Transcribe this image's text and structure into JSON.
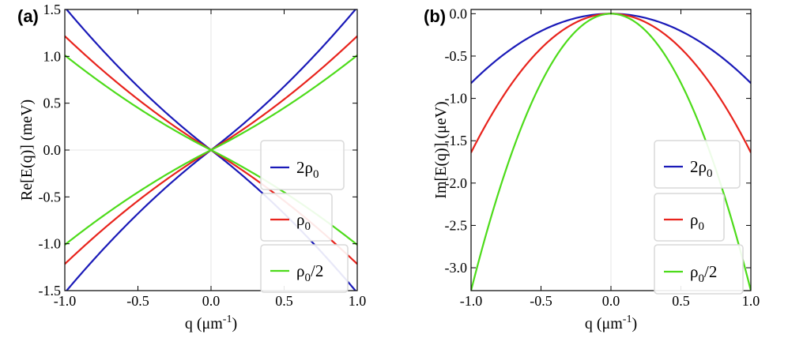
{
  "colors": {
    "blue": "#1a1ab8",
    "red": "#e8231c",
    "green": "#4ddb1a"
  },
  "chart_data": [
    {
      "type": "line",
      "panel_label": "(a)",
      "xlabel": "q (μm",
      "xlabel_sup": "-1",
      "xlabel_end": ")",
      "ylabel": "Re[E(q)] (meV)",
      "xlim": [
        -1.0,
        1.0
      ],
      "ylim": [
        -1.5,
        1.5
      ],
      "xticks": [
        -1.0,
        -0.5,
        0.0,
        0.5,
        1.0
      ],
      "xtick_labels": [
        "-1.0",
        "-0.5",
        "0.0",
        "0.5",
        "1.0"
      ],
      "yticks": [
        1.5,
        1.0,
        0.5,
        0.0,
        -0.5,
        -1.0,
        -1.5
      ],
      "ytick_labels": [
        "1.5",
        "1.0",
        "0.5",
        "0.0",
        "-0.5",
        "-1.0",
        "-1.5"
      ],
      "model": "Re E = ± c |q| (1 + b|q|)",
      "series": [
        {
          "name": "2ρ0",
          "label_main": "2ρ",
          "label_sub": "0",
          "label_tail": "",
          "color": "blue",
          "coef_c": 1.19,
          "coef_b": 0.28
        },
        {
          "name": "ρ0",
          "label_main": "ρ",
          "label_sub": "0",
          "label_tail": "",
          "color": "red",
          "coef_c": 0.95,
          "coef_b": 0.28
        },
        {
          "name": "ρ0/2",
          "label_main": "ρ",
          "label_sub": "0",
          "label_tail": "/2",
          "color": "green",
          "coef_c": 0.79,
          "coef_b": 0.28
        }
      ],
      "legend_position": "lower-right"
    },
    {
      "type": "line",
      "panel_label": "(b)",
      "xlabel": "q (μm",
      "xlabel_sup": "-1",
      "xlabel_end": ")",
      "ylabel": "Im[E(q)] (μeV)",
      "xlim": [
        -1.0,
        1.0
      ],
      "ylim": [
        -3.27,
        0.05
      ],
      "xticks": [
        -1.0,
        -0.5,
        0.0,
        0.5,
        1.0
      ],
      "xtick_labels": [
        "-1.0",
        "-0.5",
        "0.0",
        "0.5",
        "1.0"
      ],
      "yticks": [
        0.0,
        -0.5,
        -1.0,
        -1.5,
        -2.0,
        -2.5,
        -3.0
      ],
      "ytick_labels": [
        "0.0",
        "-0.5",
        "-1.0",
        "-1.5",
        "-2.0",
        "-2.5",
        "-3.0"
      ],
      "model": "Im E = -a q^2",
      "series": [
        {
          "name": "2ρ0",
          "label_main": "2ρ",
          "label_sub": "0",
          "label_tail": "",
          "color": "blue",
          "coef_a": 0.82
        },
        {
          "name": "ρ0",
          "label_main": "ρ",
          "label_sub": "0",
          "label_tail": "",
          "color": "red",
          "coef_a": 1.64
        },
        {
          "name": "ρ0/2",
          "label_main": "ρ",
          "label_sub": "0",
          "label_tail": "/2",
          "color": "green",
          "coef_a": 3.27
        }
      ],
      "legend_position": "lower-right"
    }
  ]
}
